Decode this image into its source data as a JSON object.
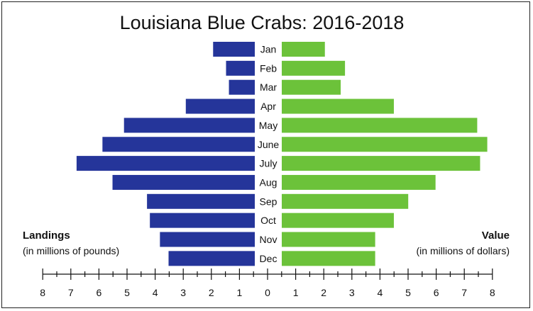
{
  "chart_data": {
    "type": "bar",
    "title": "Louisiana Blue Crabs: 2016-2018",
    "categories": [
      "Jan",
      "Feb",
      "Mar",
      "Apr",
      "May",
      "June",
      "July",
      "Aug",
      "Sep",
      "Oct",
      "Nov",
      "Dec"
    ],
    "series": [
      {
        "name": "Landings",
        "side": "left",
        "label": "Landings",
        "sublabel": "(in millions of pounds)",
        "color": "#25359a",
        "values": [
          1.45,
          1.0,
          0.9,
          2.4,
          4.55,
          5.3,
          6.2,
          4.95,
          3.75,
          3.65,
          3.3,
          3.0
        ]
      },
      {
        "name": "Value",
        "side": "right",
        "label": "Value",
        "sublabel": "(in millions of dollars)",
        "color": "#6cc23a",
        "values": [
          1.5,
          2.2,
          2.05,
          3.9,
          6.8,
          7.15,
          6.9,
          5.35,
          4.4,
          3.9,
          3.25,
          3.25
        ]
      }
    ],
    "axis": {
      "left_ticks": [
        "8",
        "7",
        "6",
        "5",
        "4",
        "3",
        "2",
        "1"
      ],
      "center_tick": "0",
      "right_ticks": [
        "1",
        "2",
        "3",
        "4",
        "5",
        "6",
        "7",
        "8"
      ],
      "range": [
        0,
        8
      ]
    }
  }
}
